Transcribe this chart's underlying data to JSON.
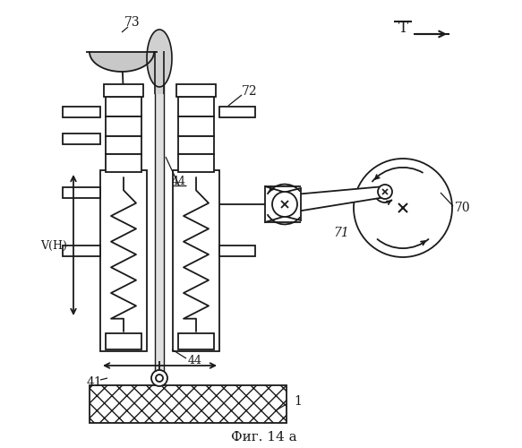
{
  "title": "Фиг. 14 а",
  "bg_color": "#ffffff",
  "line_color": "#1a1a1a",
  "fig_width": 5.83,
  "fig_height": 5.0,
  "dpi": 100
}
